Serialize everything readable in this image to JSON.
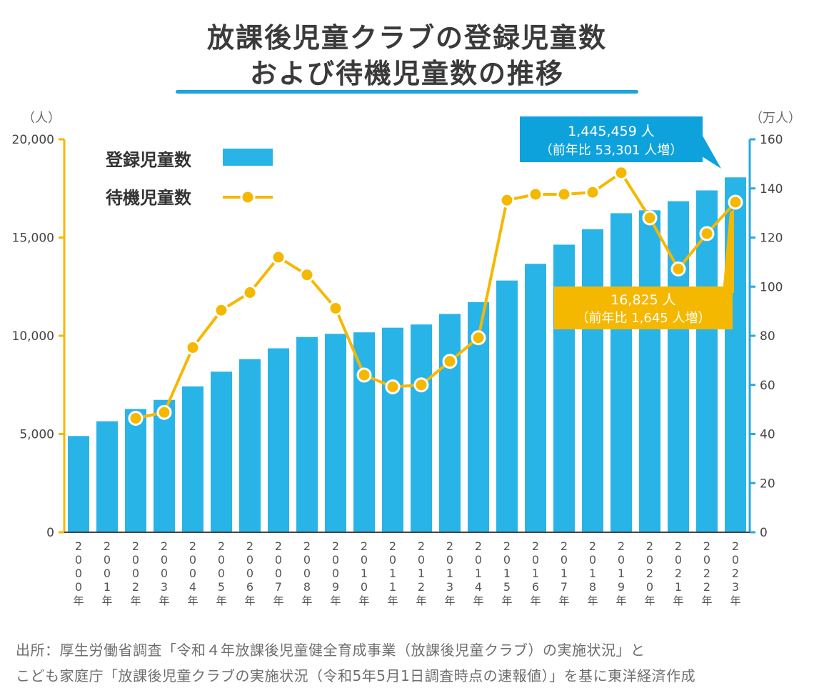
{
  "title": {
    "line1": "放課後児童クラブの登録児童数",
    "line2": "および待機児童数の推移"
  },
  "source": {
    "line1": "出所：厚生労働省調査「令和４年放課後児童健全育成事業（放課後児童クラブ）の実施状況」と",
    "line2": "こども家庭庁「放課後児童クラブの実施状況（令和5年5月1日調査時点の速報値）」を基に東洋経済作成"
  },
  "colors": {
    "bar": "#29b4e8",
    "line": "#f5b800",
    "left_axis": "#f5b800",
    "right_axis": "#29a8de",
    "annotation_registered": "#0ea2dc",
    "annotation_waiting": "#f5b800"
  },
  "chart_data": {
    "type": "bar",
    "categories": [
      "2000",
      "2001",
      "2002",
      "2003",
      "2004",
      "2005",
      "2006",
      "2007",
      "2008",
      "2009",
      "2010",
      "2011",
      "2012",
      "2013",
      "2014",
      "2015",
      "2016",
      "2017",
      "2018",
      "2019",
      "2020",
      "2021",
      "2022",
      "2023"
    ],
    "category_suffix": "年",
    "series": [
      {
        "name": "登録児童数",
        "type": "bar",
        "axis": "right",
        "unit": "万人",
        "values": [
          39.2,
          45.2,
          50.2,
          53.9,
          59.4,
          65.4,
          70.5,
          74.9,
          79.5,
          80.8,
          81.4,
          83.3,
          84.6,
          88.9,
          93.7,
          102.5,
          109.3,
          117.1,
          123.4,
          129.9,
          131.1,
          134.8,
          139.2,
          144.5
        ]
      },
      {
        "name": "待機児童数",
        "type": "line",
        "axis": "left",
        "unit": "人",
        "values": [
          null,
          null,
          5800,
          6100,
          9400,
          11300,
          12200,
          14000,
          13100,
          11400,
          8000,
          7400,
          7500,
          8700,
          9900,
          16900,
          17200,
          17200,
          17300,
          18300,
          16000,
          13400,
          15200,
          16800
        ]
      }
    ],
    "left_axis": {
      "unit_label": "（人）",
      "ylim": [
        0,
        20000
      ],
      "ticks": [
        "0",
        "5,000",
        "10,000",
        "15,000",
        "20,000"
      ]
    },
    "right_axis": {
      "unit_label": "（万人）",
      "ylim": [
        0,
        160
      ],
      "ticks": [
        "0",
        "20",
        "40",
        "60",
        "80",
        "100",
        "120",
        "140",
        "160"
      ]
    },
    "legend": {
      "position": "top-left",
      "items": [
        "登録児童数",
        "待機児童数"
      ]
    },
    "grid": false,
    "annotations": [
      {
        "target": "登録児童数",
        "category": "2023",
        "line1": "1,445,459 人",
        "line2": "（前年比 53,301 人増）"
      },
      {
        "target": "待機児童数",
        "category": "2023",
        "line1": "16,825 人",
        "line2": "（前年比 1,645 人増）"
      }
    ]
  }
}
